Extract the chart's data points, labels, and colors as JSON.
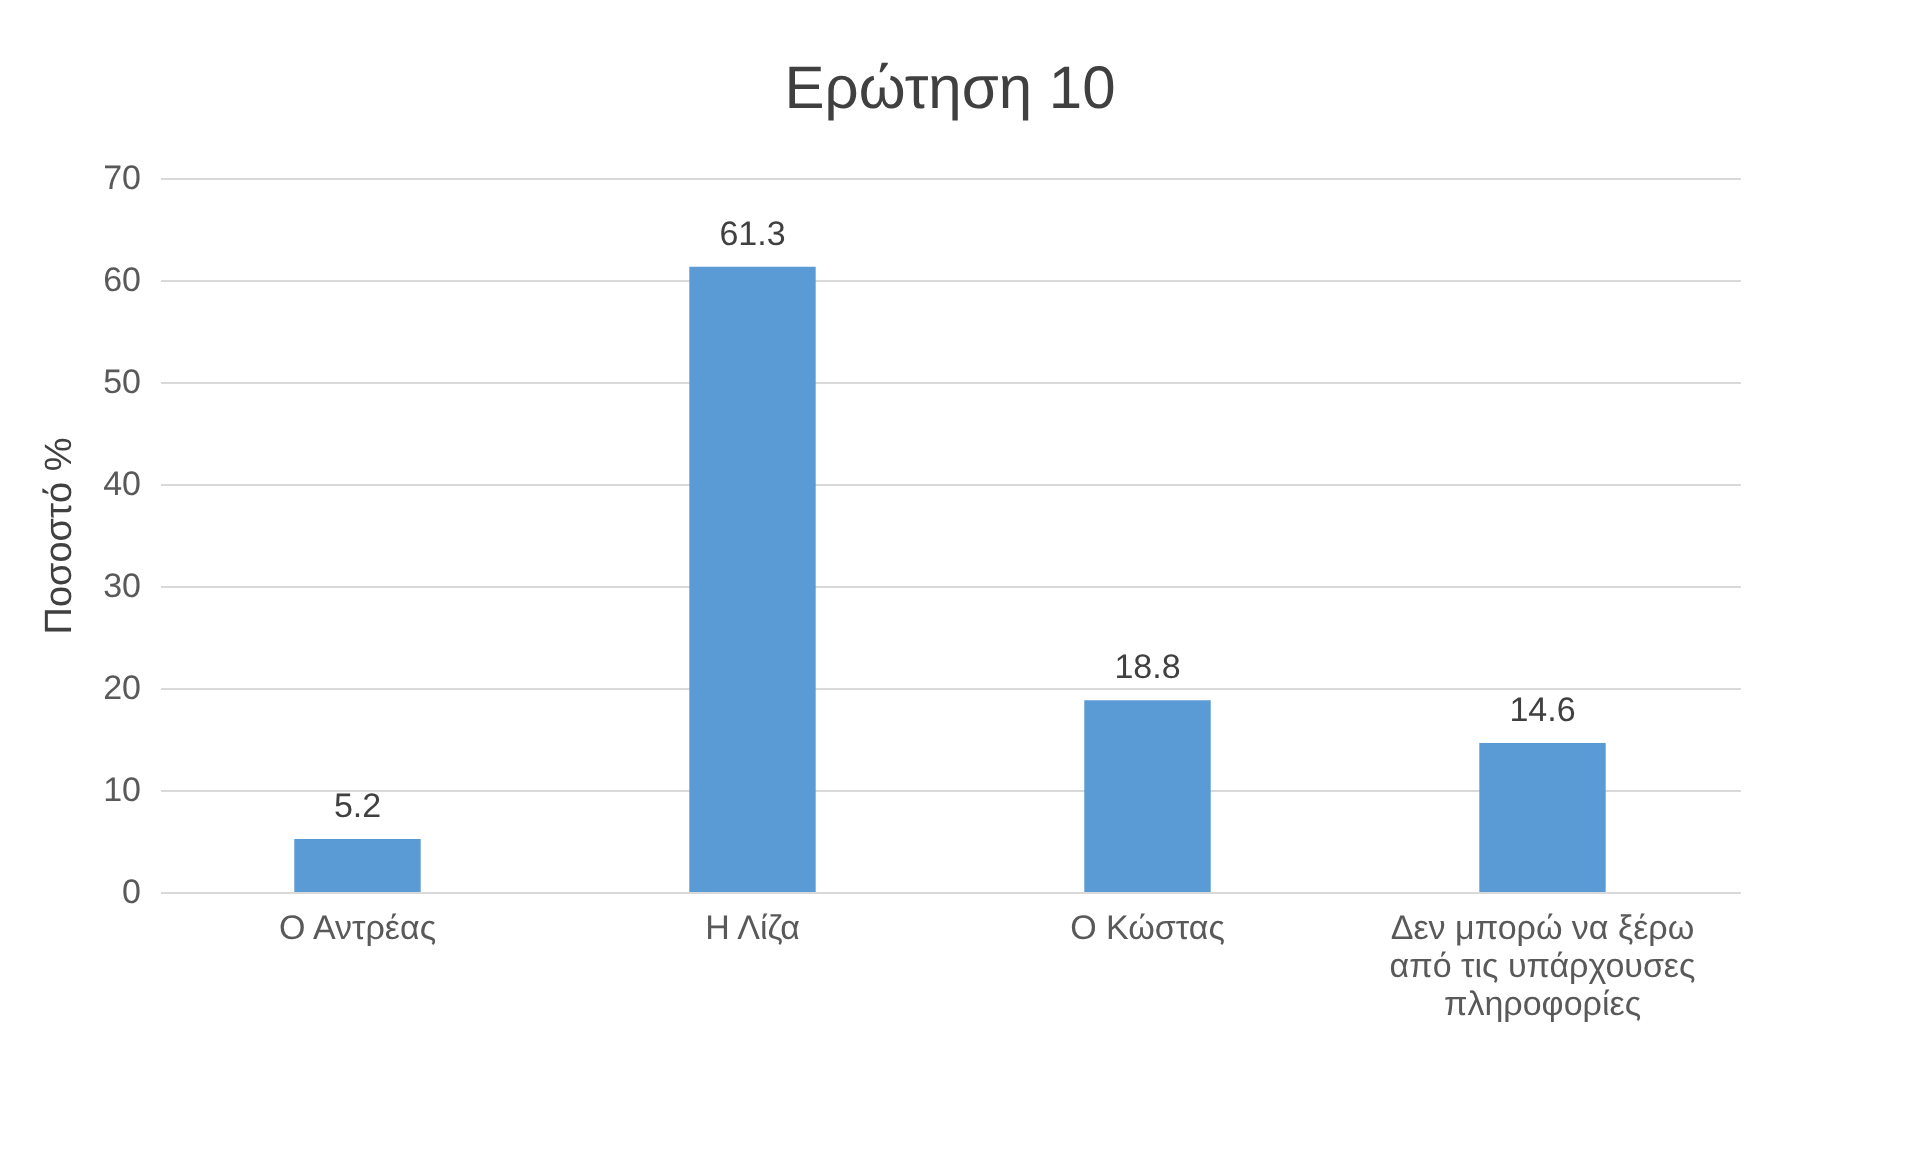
{
  "chart_data": {
    "type": "bar",
    "title": "Ερώτηση 10",
    "ylabel": "Ποσοστό %",
    "categories": [
      "Ο Αντρέας",
      "Η Λίζα",
      "Ο Κώστας",
      "Δεν μπορώ να ξέρω από τις υπάρχουσες πληροφορίες"
    ],
    "values": [
      5.2,
      61.3,
      18.8,
      14.6
    ],
    "color": "#5b9bd5",
    "ylim": [
      0,
      70
    ],
    "yticks": [
      0,
      10,
      20,
      30,
      40,
      50,
      60,
      70
    ],
    "grid": "y",
    "data_labels": true
  }
}
